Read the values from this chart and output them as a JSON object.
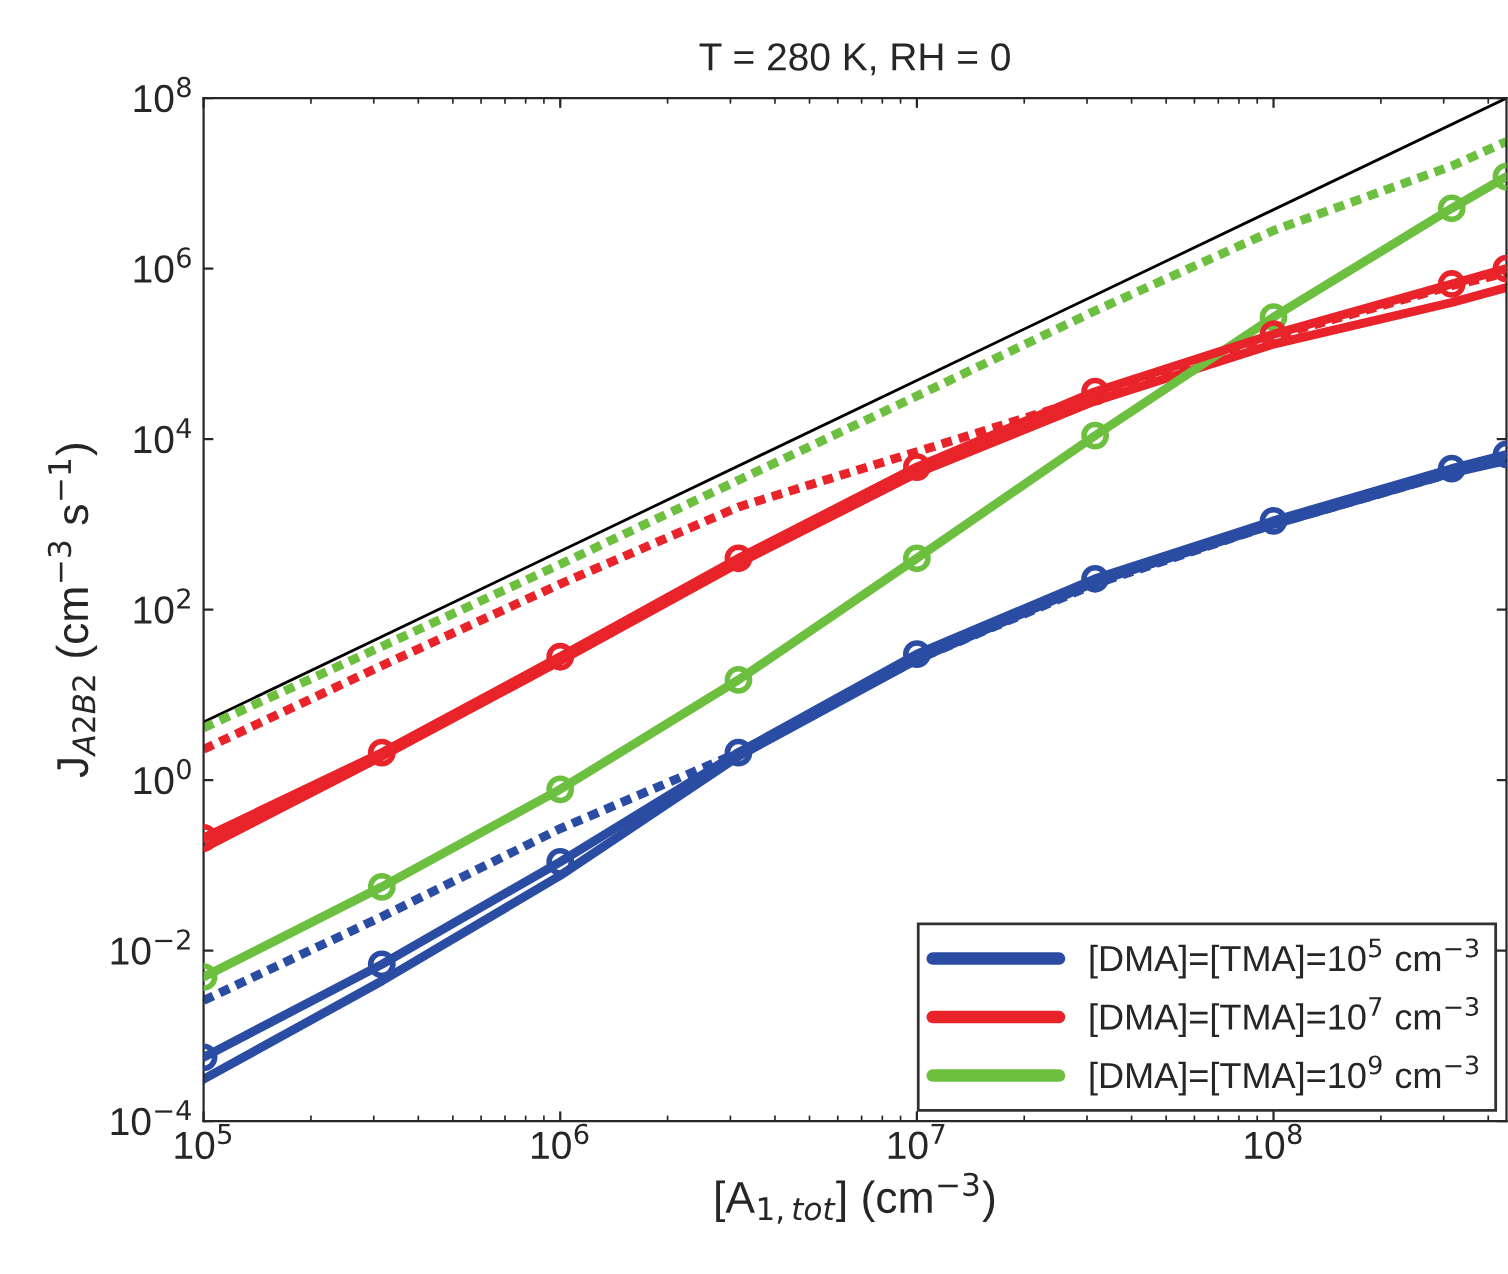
{
  "chart_data": {
    "type": "line",
    "title": "T = 280 K, RH = 0",
    "xlabel": "[A$_{1,tot}$] (cm$^{−3}$)",
    "ylabel": "J$_{A2B2}$ (cm$^{−3}$ s$^{−1}$)",
    "log": "xy",
    "grid": false,
    "legend": "bottom right",
    "xlim": [
      100000,
      450000000
    ],
    "ylim": [
      0.0001,
      100000000
    ],
    "xticks": [
      {
        "value": 100000,
        "label": "10$^{5}$"
      },
      {
        "value": 1000000,
        "label": "10$^{6}$"
      },
      {
        "value": 10000000,
        "label": "10$^{7}$"
      },
      {
        "value": 100000000,
        "label": "10$^{8}$"
      }
    ],
    "yticks": [
      {
        "value": 0.0001,
        "label": "10$^{−4}$"
      },
      {
        "value": 0.01,
        "label": "10$^{−2}$"
      },
      {
        "value": 1,
        "label": "10$^{0}$"
      },
      {
        "value": 100,
        "label": "10$^{2}$"
      },
      {
        "value": 10000,
        "label": "10$^{4}$"
      },
      {
        "value": 1000000,
        "label": "10$^{6}$"
      },
      {
        "value": 100000000,
        "label": "10$^{8}$"
      }
    ],
    "x": [
      100000,
      316000,
      1000000,
      3160000,
      10000000,
      31600000,
      100000000,
      316000000,
      450000000
    ],
    "series": [
      {
        "color": "#000000",
        "x": [
          100000,
          450000000
        ],
        "values": [
          4.8,
          100000000
        ],
        "line_style": "solid",
        "marker": "none"
      },
      {
        "color": "#6cbf3f",
        "values": [
          4.1,
          37,
          340,
          3300,
          32000,
          320000,
          2800000,
          16000000,
          31000000
        ],
        "line_style": "dotted",
        "marker": "none"
      },
      {
        "color": "#e8232a",
        "values": [
          2.3,
          22,
          200,
          1600,
          7100,
          32000,
          160000,
          630000,
          890000
        ],
        "line_style": "dotted",
        "marker": "none"
      },
      {
        "color": "#2b4ca3",
        "values": [
          0.0026,
          0.025,
          0.27,
          2.1,
          26,
          200,
          1000,
          4000,
          6000
        ],
        "line_style": "dotted",
        "marker": "none"
      },
      {
        "name": "[DMA]=[TMA]=10$^{5}$ cm$^{−3}$",
        "color": "#2b4ca3",
        "values": [
          0.00031,
          0.0044,
          0.076,
          1.9,
          26,
          210,
          1000,
          4000,
          5600
        ],
        "line_style": "solid",
        "marker": "none"
      },
      {
        "color": "#2b4ca3",
        "values": [
          0.00056,
          0.0069,
          0.11,
          2.1,
          30,
          230,
          1100,
          4500,
          6600
        ],
        "line_style": "solid",
        "marker": "circle"
      },
      {
        "name": "[DMA]=[TMA]=10$^{7}$ cm$^{−3}$",
        "color": "#e8232a",
        "values": [
          0.16,
          1.9,
          25,
          350,
          4000,
          28000,
          130000,
          400000,
          600000
        ],
        "line_style": "solid",
        "marker": "none"
      },
      {
        "color": "#e8232a",
        "values": [
          0.21,
          2.1,
          28,
          400,
          4700,
          36000,
          170000,
          660000,
          1000000
        ],
        "line_style": "solid",
        "marker": "circle"
      },
      {
        "name": "[DMA]=[TMA]=10$^{9}$ cm$^{−3}$",
        "color": "#6cbf3f",
        "values": [
          0.0049,
          0.056,
          0.78,
          15,
          400,
          11000,
          270000,
          5100000,
          12000000
        ],
        "line_style": "solid",
        "marker": "circle"
      }
    ]
  }
}
